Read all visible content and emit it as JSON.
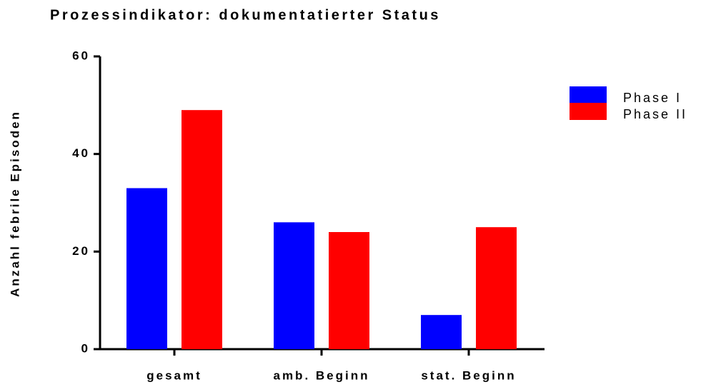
{
  "chart_data": {
    "type": "bar",
    "title": "Prozessindikator: dokumentatierter Status",
    "y_label": "Anzahl febrile Episoden",
    "categories": [
      "gesamt",
      "amb. Beginn",
      "stat. Beginn"
    ],
    "series": [
      {
        "name": "Phase I",
        "color": "#0000ff",
        "values": [
          33,
          26,
          7
        ]
      },
      {
        "name": "Phase II",
        "color": "#ff0000",
        "values": [
          49,
          24,
          25
        ]
      }
    ],
    "ylim": [
      0,
      60
    ],
    "yticks": [
      0,
      20,
      40,
      60
    ],
    "legend": "right"
  }
}
